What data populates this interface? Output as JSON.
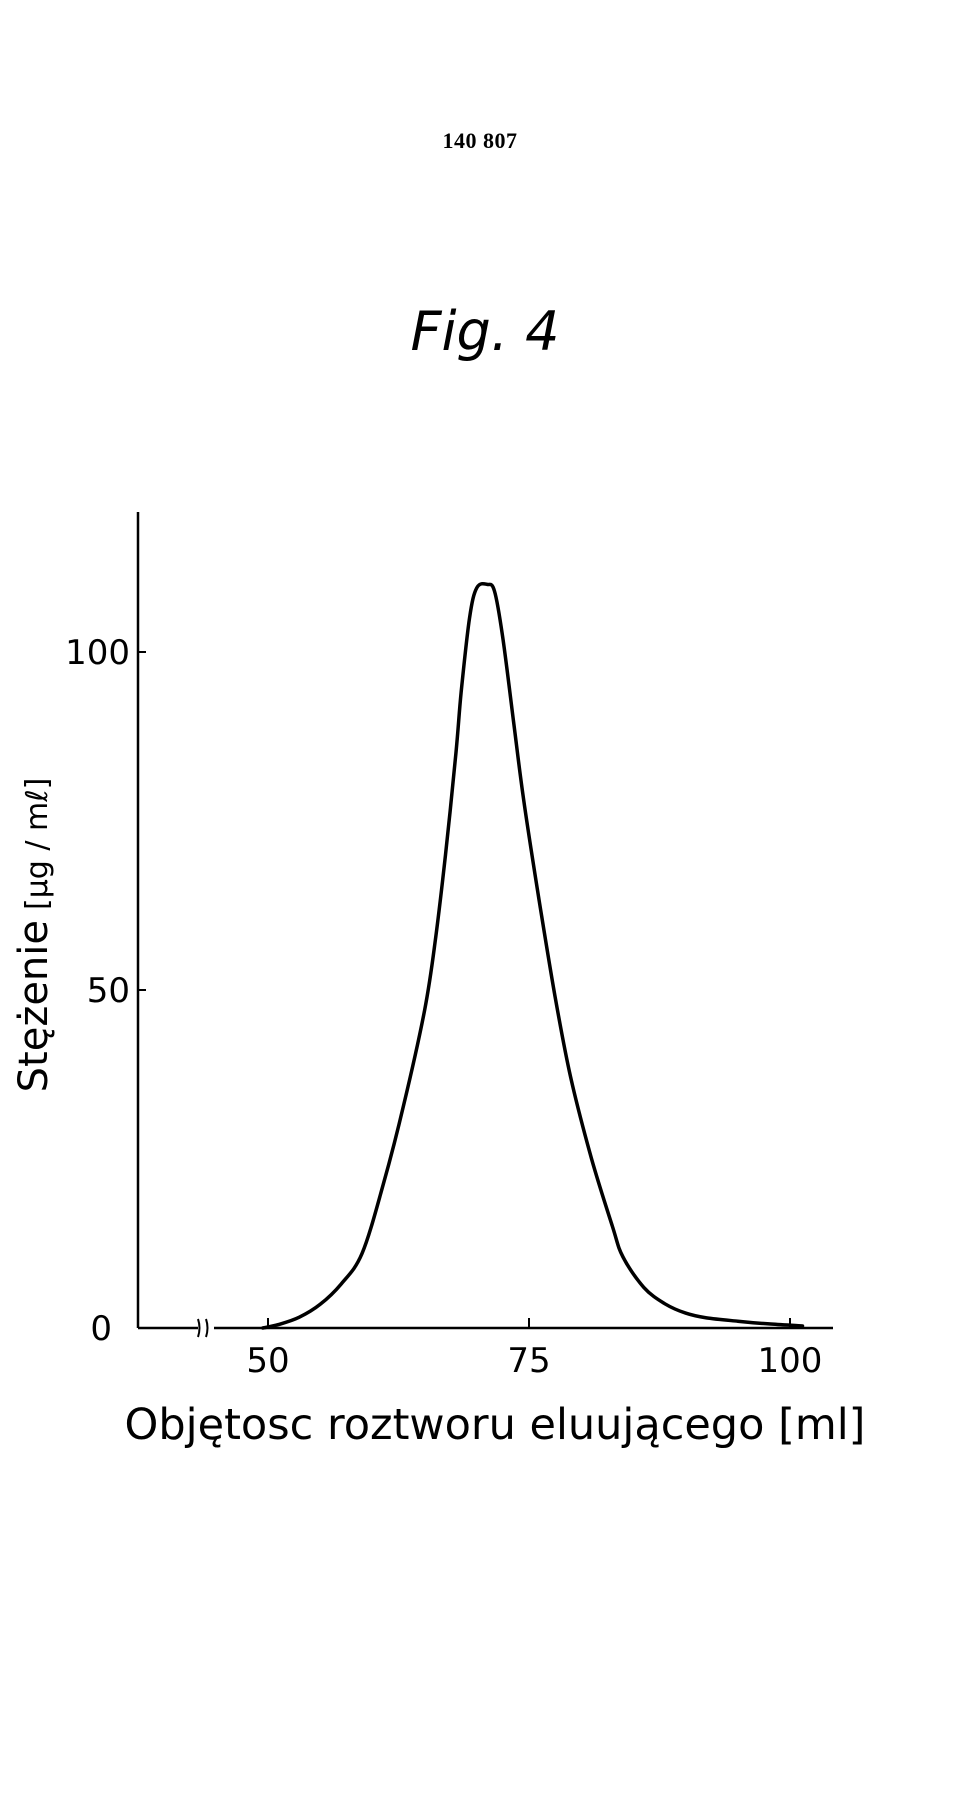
{
  "header": {
    "doc_number": "140 807",
    "figure_title": "Fig. 4"
  },
  "chart_data": {
    "type": "line",
    "title": "Fig. 4",
    "xlabel": "Objętosc roztworu eluującego [ml]",
    "ylabel": "Stężenie",
    "ylabel_unit": "[μg / mℓ]",
    "xlim": [
      50,
      101
    ],
    "ylim": [
      0,
      120
    ],
    "x_axis_break": true,
    "x_ticks": [
      50,
      75,
      100
    ],
    "x_tick_labels": [
      "50",
      "75",
      "100"
    ],
    "y_ticks": [
      0,
      50,
      100
    ],
    "y_tick_labels": [
      "0",
      "50",
      "100"
    ],
    "grid": false,
    "series": [
      {
        "x": [
          49.5,
          51,
          53,
          55,
          57,
          59,
          61,
          63,
          65,
          66,
          67,
          68,
          68.5,
          69.3,
          70,
          71,
          71.7,
          72.5,
          73.5,
          74.5,
          76,
          77.5,
          79,
          81,
          83,
          84,
          86,
          88,
          90,
          92,
          95,
          98,
          101.2
        ],
        "y": [
          0,
          0.5,
          1.6,
          3.5,
          6.5,
          11,
          21,
          33,
          47,
          57,
          70,
          85,
          94,
          105,
          109.5,
          110,
          109,
          102,
          90,
          78,
          63,
          49,
          37,
          25,
          15,
          10.5,
          6,
          3.6,
          2.2,
          1.5,
          1.0,
          0.6,
          0.3
        ],
        "color": "#000000"
      }
    ]
  }
}
